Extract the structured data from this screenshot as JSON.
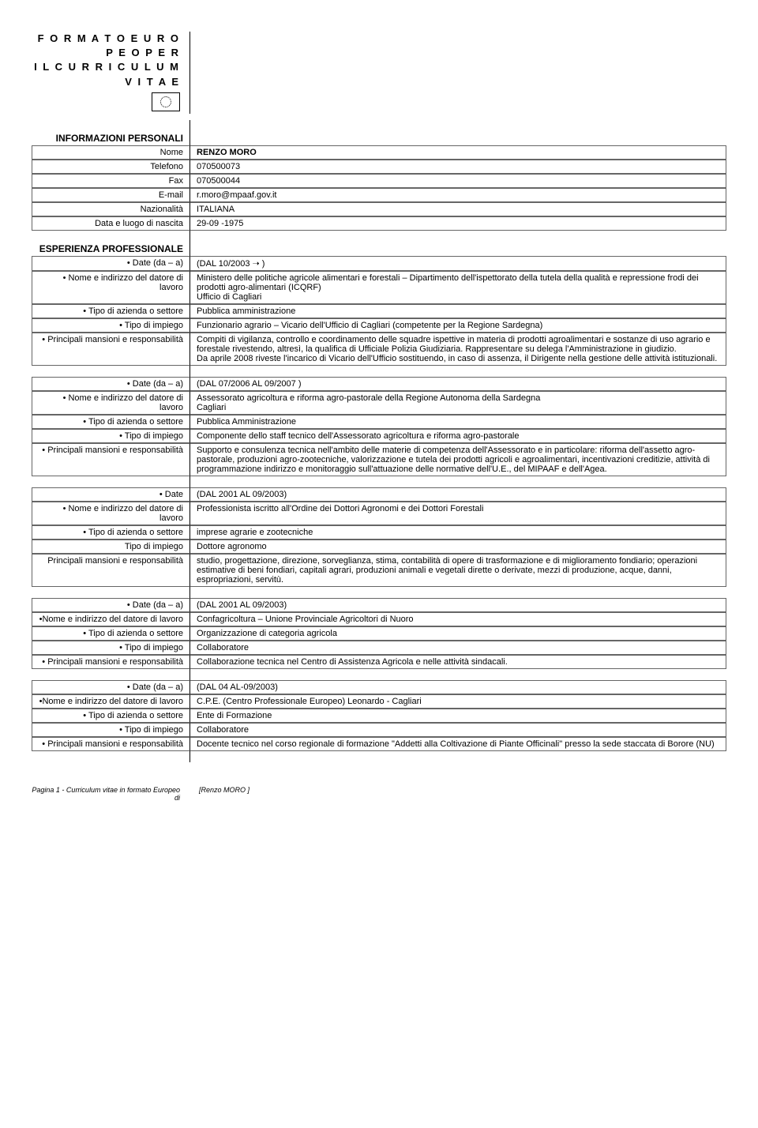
{
  "header": {
    "title_line1": "F O R M A T O  E U R O P E O  P E R",
    "title_line2": "I L  C U R R I C U L U M  V I T A E"
  },
  "personal": {
    "section": "INFORMAZIONI PERSONALI",
    "name_label": "Nome",
    "name": "RENZO MORO",
    "phone_label": "Telefono",
    "phone": "070500073",
    "fax_label": "Fax",
    "fax": "070500044",
    "email_label": "E-mail",
    "email": "r.moro@mpaaf.gov.it",
    "nationality_label": "Nazionalità",
    "nationality": "ITALIANA",
    "birth_label": "Data e luogo di nascita",
    "birth": "29-09 -1975"
  },
  "experience": {
    "section": "ESPERIENZA PROFESSIONALE",
    "blocks": [
      {
        "date_label": "• Date (da – a)",
        "date": "(DAL 10/2003 ➝ )",
        "employer_label": "• Nome e indirizzo del datore di lavoro",
        "employer": "Ministero delle politiche agricole alimentari e forestali – Dipartimento dell'ispettorato della tutela della qualità e repressione frodi dei prodotti agro-alimentari (ICQRF)\nUfficio di Cagliari",
        "type_label": "• Tipo di azienda o settore",
        "type": "Pubblica amministrazione",
        "role_label": "• Tipo di impiego",
        "role": "Funzionario agrario – Vicario dell'Ufficio di Cagliari (competente per la Regione Sardegna)",
        "resp_label": "• Principali mansioni e responsabilità",
        "resp": "Compiti di vigilanza, controllo e coordinamento delle squadre ispettive in materia di prodotti agroalimentari e sostanze di uso agrario e forestale  rivestendo, altresì, la qualifica di Ufficiale Polizia Giudiziaria. Rappresentare su delega l'Amministrazione in giudizio.\nDa aprile 2008 riveste l'incarico di Vicario dell'Ufficio sostituendo, in caso di assenza, il Dirigente nella gestione delle attività istituzionali."
      },
      {
        "date_label": "• Date (da – a)",
        "date": "(DAL 07/2006 AL 09/2007 )",
        "employer_label": "• Nome e indirizzo del datore di lavoro",
        "employer": "Assessorato agricoltura e riforma agro-pastorale della Regione Autonoma della Sardegna\nCagliari",
        "type_label": "• Tipo di azienda o settore",
        "type": "Pubblica Amministrazione",
        "role_label": "• Tipo di impiego",
        "role": "Componente dello staff tecnico dell'Assessorato agricoltura e riforma agro-pastorale",
        "resp_label": "• Principali mansioni e responsabilità",
        "resp": "Supporto e consulenza tecnica nell'ambito delle materie di competenza dell'Assessorato e in particolare: riforma dell'assetto agro-pastorale, produzioni agro-zootecniche, valorizzazione e tutela dei prodotti agricoli e agroalimentari, incentivazioni creditizie, attività di programmazione indirizzo e monitoraggio sull'attuazione delle normative dell'U.E., del MIPAAF e dell'Agea."
      },
      {
        "date_label": "• Date",
        "date": "(DAL 2001 AL 09/2003)",
        "employer_label": "• Nome e indirizzo del datore di lavoro",
        "employer": "Professionista iscritto all'Ordine dei Dottori Agronomi e dei Dottori Forestali",
        "type_label": "• Tipo di azienda o settore",
        "type": "imprese agrarie e zootecniche",
        "role_label": "Tipo di impiego",
        "role": "Dottore agronomo",
        "resp_label": "Principali mansioni e responsabilità",
        "resp": "studio, progettazione, direzione, sorveglianza, stima, contabilità di opere di trasformazione e di miglioramento fondiario; operazioni estimative di beni fondiari, capitali agrari, produzioni animali e vegetali dirette o derivate, mezzi di produzione, acque, danni, espropriazioni, servitù."
      },
      {
        "date_label": "• Date (da – a)",
        "date": "(DAL 2001 AL 09/2003)",
        "employer_label": "•Nome e indirizzo del datore di lavoro",
        "employer": "Confagricoltura – Unione Provinciale Agricoltori di Nuoro",
        "type_label": "• Tipo di azienda o settore",
        "type": "Organizzazione di  categoria agricola",
        "role_label": "• Tipo di impiego",
        "role": "Collaboratore",
        "resp_label": "• Principali mansioni e responsabilità",
        "resp": "Collaborazione tecnica nel Centro di Assistenza Agricola e nelle attività sindacali."
      },
      {
        "date_label": "• Date (da – a)",
        "date": "(DAL 04 AL-09/2003)",
        "employer_label": "•Nome e indirizzo del datore di lavoro",
        "employer": "C.P.E. (Centro Professionale Europeo) Leonardo - Cagliari",
        "type_label": "• Tipo di azienda o settore",
        "type": "Ente di Formazione",
        "role_label": "• Tipo di impiego",
        "role": "Collaboratore",
        "resp_label": "• Principali mansioni e responsabilità",
        "resp": "Docente tecnico nel corso regionale di formazione \"Addetti alla Coltivazione di Piante Officinali\" presso la sede staccata di Borore (NU)"
      }
    ]
  },
  "footer": {
    "left": "Pagina 1 - Curriculum vitae in formato Europeo di",
    "right": "[Renzo MORO ]"
  }
}
